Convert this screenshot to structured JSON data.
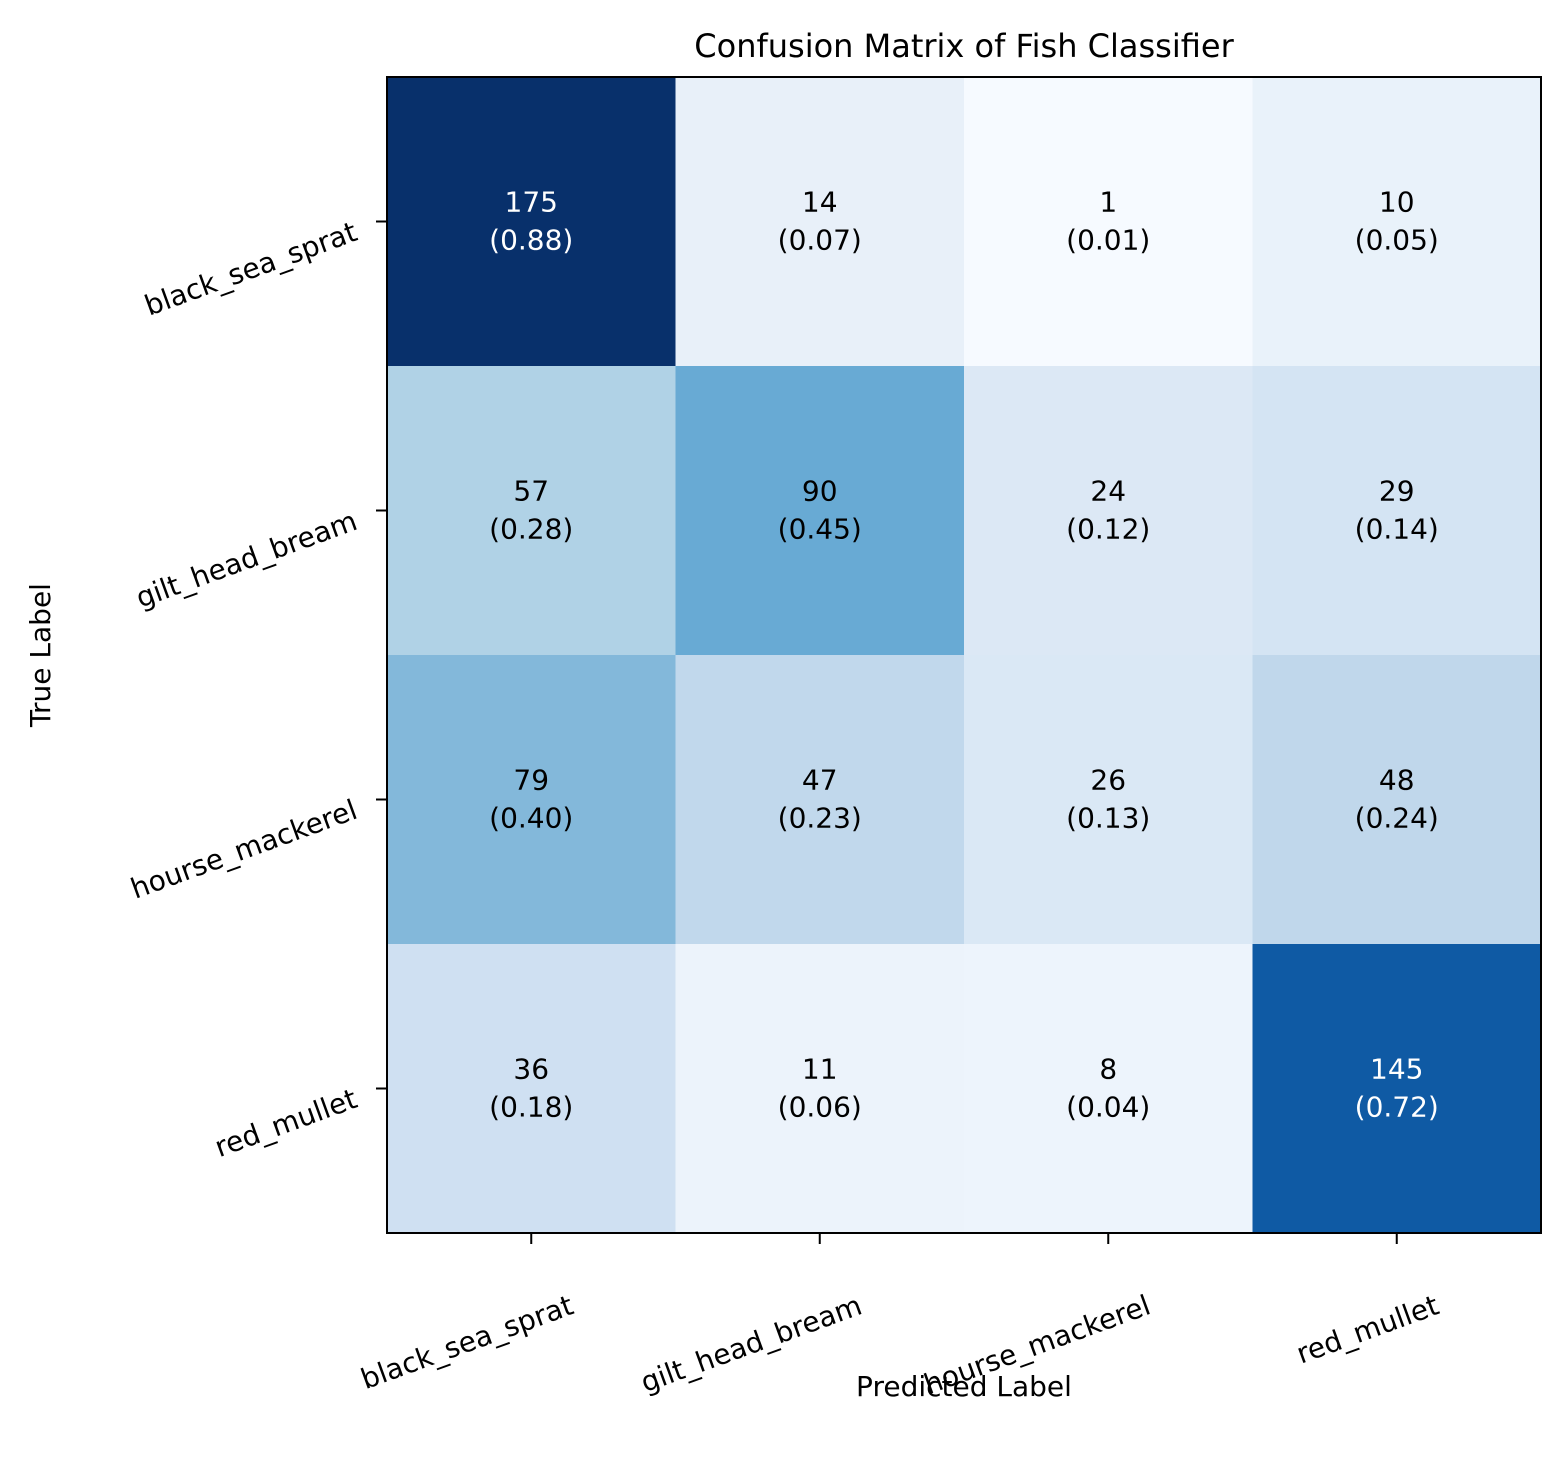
{
  "chart_data": {
    "type": "heatmap",
    "title": "Confusion Matrix of Fish Classifier",
    "xlabel": "Predicted Label",
    "ylabel": "True Label",
    "x_categories": [
      "black_sea_sprat",
      "gilt_head_bream",
      "hourse_mackerel",
      "red_mullet"
    ],
    "y_categories": [
      "black_sea_sprat",
      "gilt_head_bream",
      "hourse_mackerel",
      "red_mullet"
    ],
    "values": [
      [
        175,
        14,
        1,
        10
      ],
      [
        57,
        90,
        24,
        29
      ],
      [
        79,
        47,
        26,
        48
      ],
      [
        36,
        11,
        8,
        145
      ]
    ],
    "normalized": [
      [
        "0.88",
        "0.07",
        "0.01",
        "0.05"
      ],
      [
        "0.28",
        "0.45",
        "0.12",
        "0.14"
      ],
      [
        "0.40",
        "0.23",
        "0.13",
        "0.24"
      ],
      [
        "0.18",
        "0.06",
        "0.04",
        "0.72"
      ]
    ],
    "colormap": "Blues",
    "cell_colors": [
      [
        "#08306b",
        "#e8f0f9",
        "#f6faff",
        "#e9f2fa"
      ],
      [
        "#b0d2e6",
        "#68aad4",
        "#dce8f5",
        "#d4e4f3"
      ],
      [
        "#83b8da",
        "#c1d8ec",
        "#dae8f5",
        "#c0d7eb"
      ],
      [
        "#cfe0f2",
        "#ecf3fb",
        "#edf4fc",
        "#0f5aa4"
      ]
    ],
    "text_colors": [
      [
        "#ffffff",
        "#000000",
        "#000000",
        "#000000"
      ],
      [
        "#000000",
        "#000000",
        "#000000",
        "#000000"
      ],
      [
        "#000000",
        "#000000",
        "#000000",
        "#000000"
      ],
      [
        "#000000",
        "#000000",
        "#000000",
        "#ffffff"
      ]
    ]
  }
}
